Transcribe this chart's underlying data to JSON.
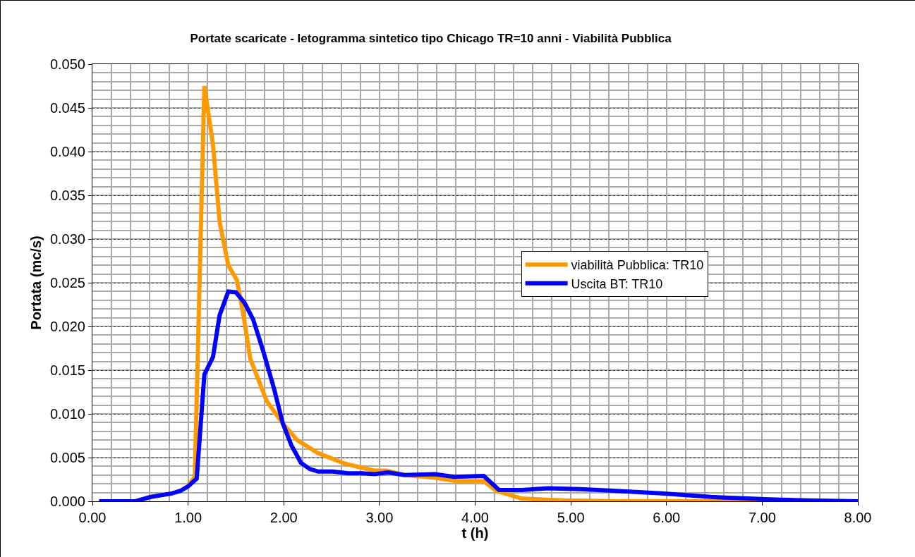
{
  "chart_data": {
    "type": "line",
    "title": "Portate scaricate - Ietogramma sintetico tipo Chicago TR=10 anni - Viabilità Pubblica",
    "xlabel": "t (h)",
    "ylabel": "Portata (mc/s)",
    "xlim": [
      0,
      8
    ],
    "xticks": [
      {
        "value": 0,
        "label": "0.00"
      },
      {
        "value": 1,
        "label": "1.00"
      },
      {
        "value": 2,
        "label": "2.00"
      },
      {
        "value": 3,
        "label": "3.00"
      },
      {
        "value": 4,
        "label": "4.00"
      },
      {
        "value": 5,
        "label": "5.00"
      },
      {
        "value": 6,
        "label": "6.00"
      },
      {
        "value": 7,
        "label": "7.00"
      },
      {
        "value": 8,
        "label": "8.00"
      }
    ],
    "ylim": [
      0,
      0.05
    ],
    "yticks": [
      {
        "value": 0,
        "label": "0.000"
      },
      {
        "value": 0.005,
        "label": "0.005"
      },
      {
        "value": 0.01,
        "label": "0.010"
      },
      {
        "value": 0.015,
        "label": "0.015"
      },
      {
        "value": 0.02,
        "label": "0.020"
      },
      {
        "value": 0.025,
        "label": "0.025"
      },
      {
        "value": 0.03,
        "label": "0.030"
      },
      {
        "value": 0.035,
        "label": "0.035"
      },
      {
        "value": 0.04,
        "label": "0.040"
      },
      {
        "value": 0.045,
        "label": "0.045"
      },
      {
        "value": 0.05,
        "label": "0.050"
      }
    ],
    "grid": true,
    "legend": "right",
    "marker": "none",
    "line_style": "solid",
    "series": [
      {
        "name": "viabilità Pubblica: TR10",
        "color": "#ff9900",
        "x": [
          1.0,
          1.07,
          1.17,
          1.26,
          1.33,
          1.42,
          1.51,
          1.58,
          1.65,
          1.82,
          1.99,
          2.14,
          2.36,
          2.64,
          2.95,
          3.07,
          3.27,
          3.58,
          3.81,
          4.09,
          4.22,
          4.49,
          4.93,
          5.5,
          6.0,
          7.0,
          8.0
        ],
        "values": [
          0.0018,
          0.0028,
          0.0475,
          0.0408,
          0.0319,
          0.027,
          0.0253,
          0.0212,
          0.0163,
          0.0115,
          0.0089,
          0.007,
          0.0055,
          0.0043,
          0.0035,
          0.0035,
          0.003,
          0.0027,
          0.0023,
          0.0023,
          0.0012,
          0.0003,
          0.0001,
          0,
          0,
          0,
          0
        ]
      },
      {
        "name": "Uscita BT: TR10",
        "color": "#0000ff",
        "x": [
          0.07,
          0.45,
          0.61,
          0.83,
          0.92,
          1.0,
          1.09,
          1.17,
          1.26,
          1.33,
          1.42,
          1.5,
          1.59,
          1.68,
          1.79,
          1.9,
          1.99,
          2.08,
          2.18,
          2.27,
          2.36,
          2.51,
          2.67,
          2.82,
          2.95,
          3.09,
          3.26,
          3.58,
          3.78,
          4.09,
          4.25,
          4.49,
          4.76,
          5.1,
          5.44,
          5.95,
          6.46,
          7.13,
          7.47,
          8.0
        ],
        "values": [
          0,
          0,
          0.0005,
          0.0009,
          0.0012,
          0.0017,
          0.0026,
          0.0145,
          0.0165,
          0.0213,
          0.024,
          0.0239,
          0.0227,
          0.0208,
          0.017,
          0.0128,
          0.0089,
          0.0064,
          0.0044,
          0.0037,
          0.0034,
          0.0034,
          0.0032,
          0.0032,
          0.0031,
          0.0033,
          0.003,
          0.0031,
          0.0028,
          0.0029,
          0.0013,
          0.0013,
          0.0015,
          0.0014,
          0.0012,
          0.0009,
          0.0005,
          0.0002,
          0.0001,
          0
        ]
      }
    ]
  }
}
